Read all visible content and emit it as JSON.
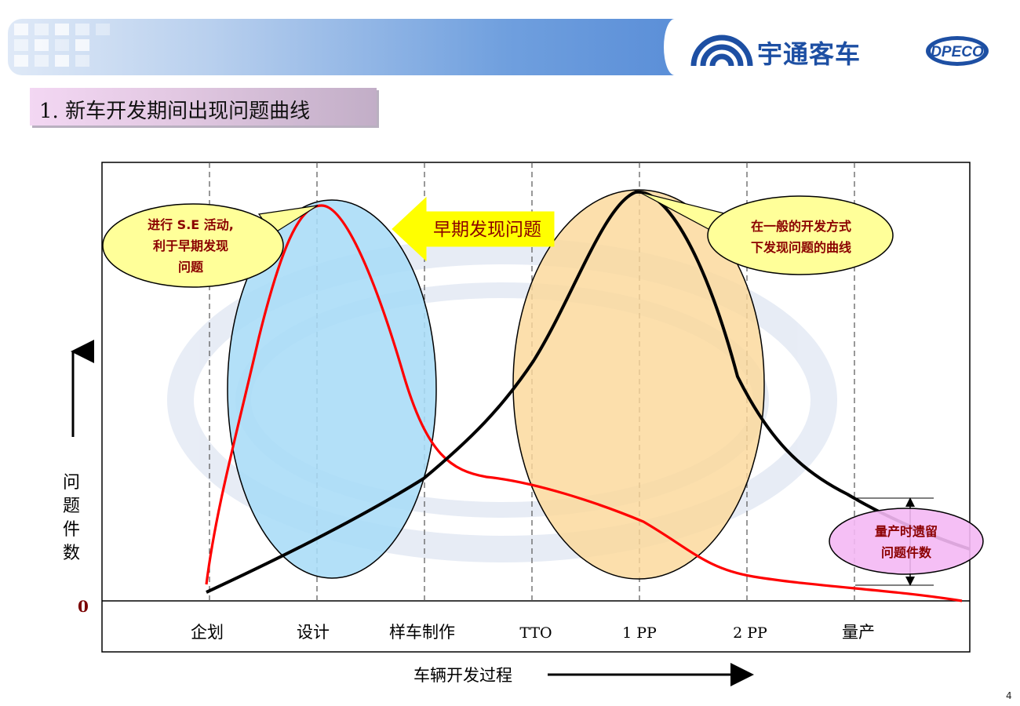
{
  "header": {
    "company_name": "宇通客车",
    "brand_logo_text": "DPECO",
    "accent_color": "#1d4fa3"
  },
  "section_title": "1. 新车开发期间出现问题曲线",
  "page_number": "4",
  "chart_data": {
    "type": "line",
    "title": "",
    "xlabel": "车辆开发过程",
    "ylabel": "问题件数",
    "y_origin_label": "0",
    "categories": [
      "企划",
      "设计",
      "样车制作",
      "TTO",
      "1 PP",
      "2 PP",
      "量产"
    ],
    "series": [
      {
        "color": "#ff0000",
        "shape": "early-peak curve (S.E activities)",
        "peak_stage": "设计"
      },
      {
        "color": "#000000",
        "shape": "late-peak curve (conventional development)",
        "peak_stage": "1 PP"
      }
    ],
    "annotations": {
      "se_callout": [
        "进行 S.E 活动,",
        "利于早期发现",
        "问题"
      ],
      "early_arrow": "早期发现问题",
      "normal_callout": [
        "在一般的开发方式",
        "下发现问题的曲线"
      ],
      "remain_callout": [
        "量产时遗留",
        "问题件数"
      ]
    },
    "grid": "dashed vertical lines per stage",
    "legend": "none"
  }
}
